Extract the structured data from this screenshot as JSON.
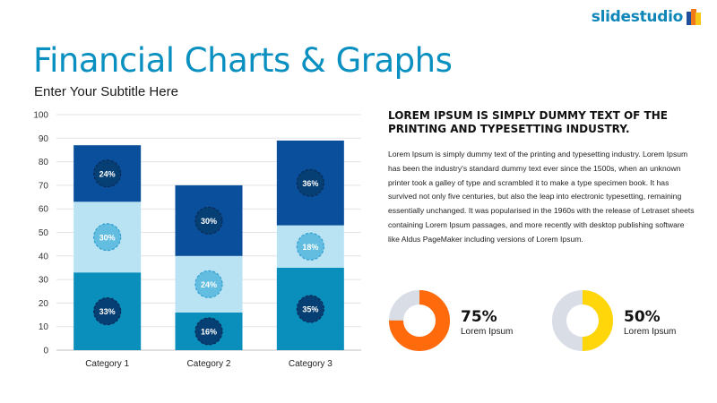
{
  "brand": {
    "logo_text": "slidestudio"
  },
  "header": {
    "title": "Financial Charts & Graphs",
    "subtitle": "Enter Your Subtitle Here"
  },
  "chart_data": {
    "type": "bar",
    "stacked": true,
    "categories": [
      "Category 1",
      "Category 2",
      "Category 3"
    ],
    "series": [
      {
        "values": [
          33,
          16,
          35
        ],
        "labels": [
          "33%",
          "16%",
          "35%"
        ],
        "color": "#0a8ebc"
      },
      {
        "values": [
          30,
          24,
          18
        ],
        "labels": [
          "30%",
          "24%",
          "18%"
        ],
        "color": "#b9e3f3"
      },
      {
        "values": [
          24,
          30,
          36
        ],
        "labels": [
          "24%",
          "30%",
          "36%"
        ],
        "color": "#0a4f9c"
      }
    ],
    "ylim": [
      0,
      100
    ],
    "yticks": [
      0,
      10,
      20,
      30,
      40,
      50,
      60,
      70,
      80,
      90,
      100
    ],
    "grid": true,
    "legend": "none"
  },
  "text_panel": {
    "heading": "LOREM IPSUM IS SIMPLY DUMMY TEXT OF THE PRINTING AND TYPESETTING INDUSTRY.",
    "body": "Lorem Ipsum is simply dummy text of the printing and typesetting industry. Lorem Ipsum has been the industry's standard dummy text ever since the 1500s, when an unknown printer took a galley of type and scrambled it to make a type specimen book. It has survived not only five centuries, but also the leap into electronic typesetting, remaining essentially unchanged. It was popularised in the 1960s with the release of Letraset sheets containing Lorem Ipsum passages, and more recently with desktop publishing software like Aldus PageMaker including versions of Lorem Ipsum."
  },
  "donuts": [
    {
      "value": 75,
      "label": "75%",
      "caption": "Lorem Ipsum",
      "color": "#ff6a0d",
      "track_color": "#d8dde6"
    },
    {
      "value": 50,
      "label": "50%",
      "caption": "Lorem Ipsum",
      "color": "#ffd60a",
      "track_color": "#d8dde6"
    }
  ]
}
